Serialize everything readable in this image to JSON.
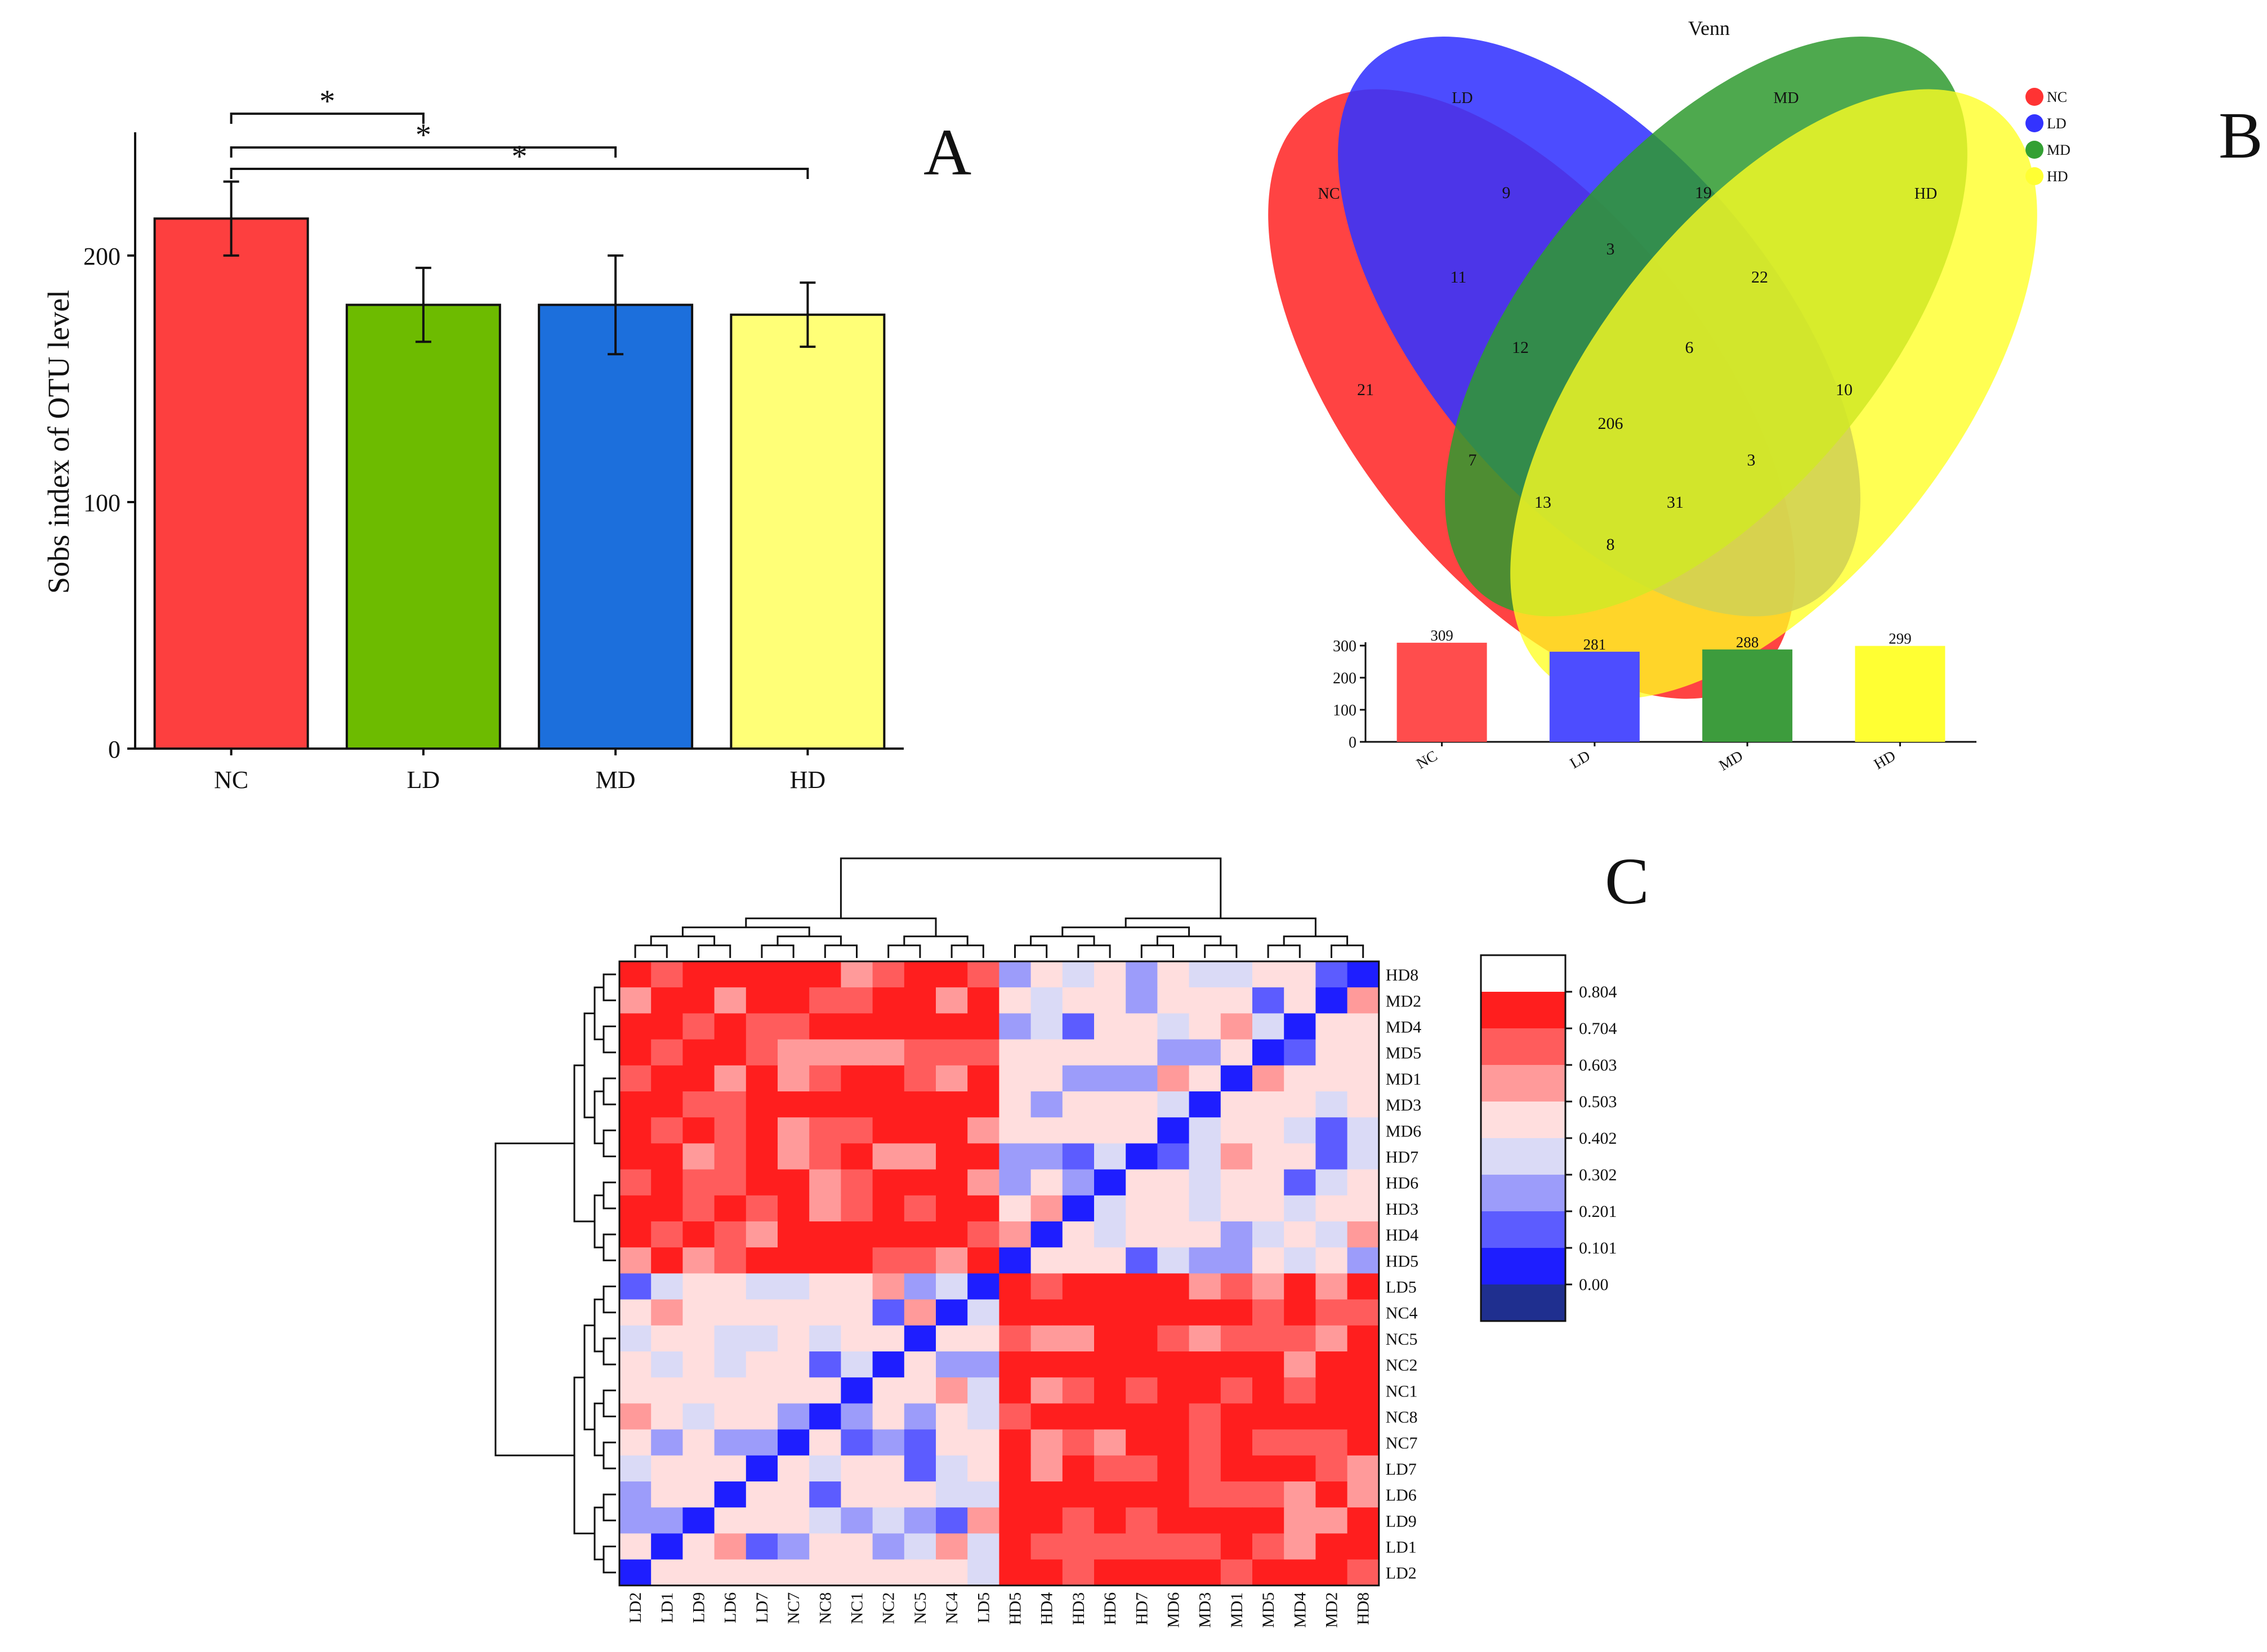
{
  "panel_labels": {
    "a": "A",
    "b": "B",
    "c": "C"
  },
  "chart_data": [
    {
      "id": "A",
      "type": "bar",
      "ylabel": "Sobs index of OTU level",
      "categories": [
        "NC",
        "LD",
        "MD",
        "HD"
      ],
      "values": [
        215,
        180,
        180,
        176
      ],
      "errors": [
        15,
        15,
        20,
        13
      ],
      "colors": [
        "#fd3f3f",
        "#6dbb00",
        "#1c6fdc",
        "#ffff77"
      ],
      "ylim": [
        0,
        250
      ],
      "yticks": [
        0,
        100,
        200
      ],
      "significance": [
        {
          "from": "NC",
          "to": "LD",
          "label": "*"
        },
        {
          "from": "NC",
          "to": "MD",
          "label": "*"
        },
        {
          "from": "NC",
          "to": "HD",
          "label": "*"
        }
      ]
    },
    {
      "id": "B",
      "type": "venn",
      "title": "Venn",
      "sets": [
        {
          "name": "NC",
          "color": "#ff3333"
        },
        {
          "name": "LD",
          "color": "#3333ff"
        },
        {
          "name": "MD",
          "color": "#33a033"
        },
        {
          "name": "HD",
          "color": "#ffff33"
        }
      ],
      "regions": [
        {
          "sets": [
            "NC"
          ],
          "value": "21"
        },
        {
          "sets": [
            "LD"
          ],
          "value": "9"
        },
        {
          "sets": [
            "MD"
          ],
          "value": "19"
        },
        {
          "sets": [
            "HD"
          ],
          "value": "10"
        },
        {
          "sets": [
            "NC",
            "LD"
          ],
          "value": "11"
        },
        {
          "sets": [
            "LD",
            "MD"
          ],
          "value": "3"
        },
        {
          "sets": [
            "MD",
            "HD"
          ],
          "value": "22"
        },
        {
          "sets": [
            "NC",
            "LD",
            "MD"
          ],
          "value": "12"
        },
        {
          "sets": [
            "LD",
            "MD",
            "HD"
          ],
          "value": "6"
        },
        {
          "sets": [
            "NC",
            "LD",
            "MD",
            "HD"
          ],
          "value": "206"
        },
        {
          "sets": [
            "NC",
            "MD"
          ],
          "value": "7"
        },
        {
          "sets": [
            "LD",
            "HD"
          ],
          "value": "3"
        },
        {
          "sets": [
            "NC",
            "MD",
            "HD"
          ],
          "value": "13"
        },
        {
          "sets": [
            "NC",
            "LD",
            "HD"
          ],
          "value": "31"
        },
        {
          "sets": [
            "NC",
            "HD"
          ],
          "value": "8"
        }
      ],
      "totals": {
        "type": "bar",
        "categories": [
          "NC",
          "LD",
          "MD",
          "HD"
        ],
        "values": [
          309,
          281,
          288,
          299
        ],
        "colors": [
          "#ff4d4d",
          "#4d4dff",
          "#3d9c3d",
          "#ffff33"
        ],
        "ylim": [
          0,
          300
        ],
        "yticks": [
          0,
          100,
          200,
          300
        ]
      }
    },
    {
      "id": "C",
      "type": "heatmap",
      "rows": [
        "HD8",
        "MD2",
        "MD4",
        "MD5",
        "MD1",
        "MD3",
        "MD6",
        "HD7",
        "HD6",
        "HD3",
        "HD4",
        "HD5",
        "LD5",
        "NC4",
        "NC5",
        "NC2",
        "NC1",
        "NC8",
        "NC7",
        "LD7",
        "LD6",
        "LD9",
        "LD1",
        "LD2"
      ],
      "columns": [
        "LD2",
        "LD1",
        "LD9",
        "LD6",
        "LD7",
        "NC7",
        "NC8",
        "NC1",
        "NC2",
        "NC5",
        "NC4",
        "LD5",
        "HD5",
        "HD4",
        "HD3",
        "HD6",
        "HD7",
        "MD6",
        "MD3",
        "MD1",
        "MD5",
        "MD4",
        "MD2",
        "HD8"
      ],
      "legend_ticks": [
        "0.804",
        "0.704",
        "0.603",
        "0.503",
        "0.402",
        "0.302",
        "0.201",
        "0.101",
        "0.00"
      ],
      "legend_colors": [
        "#ffffff",
        "#ff1e1e",
        "#ff5c5c",
        "#ff9a9a",
        "#ffdede",
        "#dadaf6",
        "#9c9cfa",
        "#5c5cff",
        "#1e1eff",
        "#1f2f8f"
      ]
    }
  ]
}
